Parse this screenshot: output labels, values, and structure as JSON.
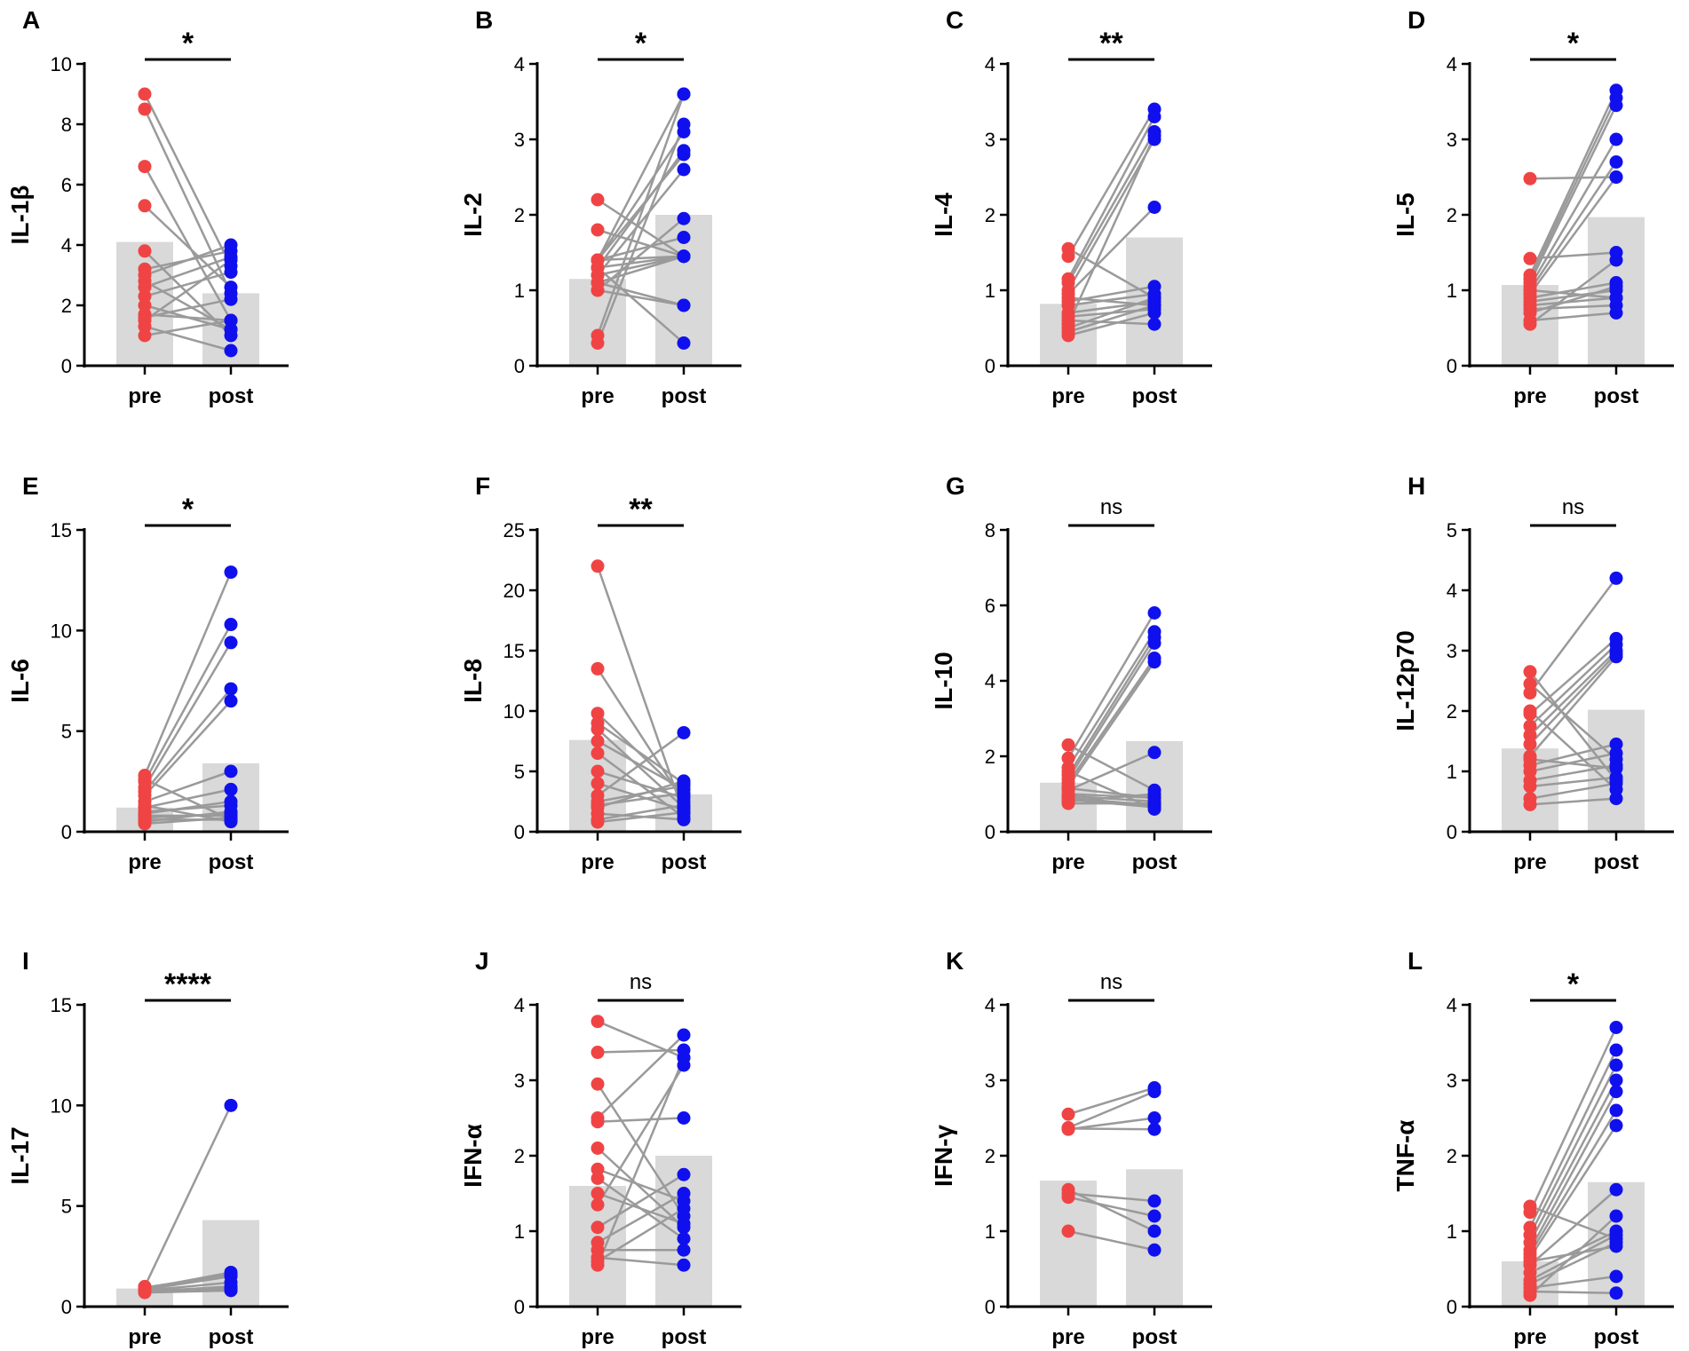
{
  "colors": {
    "pre": "#f04444",
    "post": "#1010ee",
    "bar": "#d9d9d9",
    "line": "#9a9a9a",
    "axis": "#000000"
  },
  "chart_data": [
    {
      "panel": "A",
      "type": "bar",
      "ylabel": "IL-1β",
      "categories": [
        "pre",
        "post"
      ],
      "ylim": [
        0,
        10
      ],
      "yticks": [
        0,
        2,
        4,
        6,
        8,
        10
      ],
      "bar_values": [
        4.1,
        2.4
      ],
      "significance": "*",
      "pairs": [
        [
          9.0,
          3.3
        ],
        [
          8.5,
          2.4
        ],
        [
          6.6,
          1.5
        ],
        [
          5.3,
          2.6
        ],
        [
          3.8,
          1.0
        ],
        [
          3.2,
          3.8
        ],
        [
          3.0,
          4.0
        ],
        [
          2.6,
          3.6
        ],
        [
          2.3,
          3.1
        ],
        [
          2.0,
          1.2
        ],
        [
          1.7,
          1.5
        ],
        [
          1.5,
          3.5
        ],
        [
          1.3,
          0.5
        ],
        [
          1.0,
          1.5
        ],
        [
          2.8,
          1.2
        ],
        [
          1.6,
          2.2
        ]
      ]
    },
    {
      "panel": "B",
      "type": "bar",
      "ylabel": "IL-2",
      "categories": [
        "pre",
        "post"
      ],
      "ylim": [
        0,
        4
      ],
      "yticks": [
        0,
        1,
        2,
        3,
        4
      ],
      "bar_values": [
        1.15,
        2.0
      ],
      "significance": "*",
      "pairs": [
        [
          2.2,
          1.45
        ],
        [
          1.8,
          1.45
        ],
        [
          1.4,
          3.6
        ],
        [
          1.4,
          1.7
        ],
        [
          1.3,
          0.3
        ],
        [
          1.2,
          1.45
        ],
        [
          1.1,
          0.8
        ],
        [
          1.0,
          1.95
        ],
        [
          0.4,
          3.6
        ],
        [
          0.3,
          3.2
        ],
        [
          1.4,
          3.1
        ],
        [
          1.4,
          2.8
        ],
        [
          1.3,
          2.85
        ],
        [
          1.2,
          2.6
        ],
        [
          1.4,
          1.45
        ],
        [
          1.1,
          1.45
        ],
        [
          1.0,
          0.8
        ],
        [
          1.3,
          1.45
        ]
      ]
    },
    {
      "panel": "C",
      "type": "bar",
      "ylabel": "IL-4",
      "categories": [
        "pre",
        "post"
      ],
      "ylim": [
        0,
        4
      ],
      "yticks": [
        0,
        1,
        2,
        3,
        4
      ],
      "bar_values": [
        0.82,
        1.7
      ],
      "significance": "**",
      "pairs": [
        [
          1.55,
          0.9
        ],
        [
          1.45,
          3.4
        ],
        [
          1.15,
          3.3
        ],
        [
          1.1,
          3.1
        ],
        [
          1.0,
          3.0
        ],
        [
          0.95,
          2.1
        ],
        [
          0.9,
          0.8
        ],
        [
          0.85,
          1.05
        ],
        [
          0.8,
          0.95
        ],
        [
          0.7,
          0.85
        ],
        [
          0.65,
          0.75
        ],
        [
          0.6,
          0.55
        ],
        [
          0.55,
          3.05
        ],
        [
          0.5,
          0.9
        ],
        [
          0.45,
          0.8
        ],
        [
          0.4,
          0.7
        ]
      ]
    },
    {
      "panel": "D",
      "type": "bar",
      "ylabel": "IL-5",
      "categories": [
        "pre",
        "post"
      ],
      "ylim": [
        0,
        4
      ],
      "yticks": [
        0,
        1,
        2,
        3,
        4
      ],
      "bar_values": [
        1.07,
        1.97
      ],
      "significance": "*",
      "pairs": [
        [
          2.48,
          2.5
        ],
        [
          1.42,
          1.5
        ],
        [
          1.2,
          3.65
        ],
        [
          1.15,
          3.55
        ],
        [
          1.1,
          3.45
        ],
        [
          1.05,
          3.0
        ],
        [
          1.0,
          2.7
        ],
        [
          0.95,
          2.5
        ],
        [
          0.9,
          1.1
        ],
        [
          0.85,
          1.0
        ],
        [
          0.8,
          0.9
        ],
        [
          0.75,
          0.8
        ],
        [
          0.7,
          1.05
        ],
        [
          0.6,
          0.7
        ],
        [
          0.55,
          1.4
        ],
        [
          1.0,
          0.9
        ]
      ]
    },
    {
      "panel": "E",
      "type": "bar",
      "ylabel": "IL-6",
      "categories": [
        "pre",
        "post"
      ],
      "ylim": [
        0,
        15
      ],
      "yticks": [
        0,
        5,
        10,
        15
      ],
      "bar_values": [
        1.2,
        3.4
      ],
      "significance": "*",
      "pairs": [
        [
          2.8,
          12.9
        ],
        [
          2.5,
          10.3
        ],
        [
          2.2,
          9.4
        ],
        [
          2.0,
          7.1
        ],
        [
          1.8,
          6.5
        ],
        [
          1.5,
          3.0
        ],
        [
          1.2,
          2.1
        ],
        [
          1.0,
          1.3
        ],
        [
          0.8,
          0.8
        ],
        [
          0.6,
          0.6
        ],
        [
          0.5,
          1.0
        ],
        [
          0.4,
          0.7
        ],
        [
          1.3,
          0.5
        ],
        [
          0.9,
          1.5
        ],
        [
          0.7,
          0.9
        ],
        [
          2.6,
          0.6
        ]
      ]
    },
    {
      "panel": "F",
      "type": "bar",
      "ylabel": "IL-8",
      "categories": [
        "pre",
        "post"
      ],
      "ylim": [
        0,
        25
      ],
      "yticks": [
        0,
        5,
        10,
        15,
        20,
        25
      ],
      "bar_values": [
        7.6,
        3.1
      ],
      "significance": "**",
      "pairs": [
        [
          22.0,
          1.5
        ],
        [
          13.5,
          2.5
        ],
        [
          9.8,
          3.0
        ],
        [
          9.0,
          4.0
        ],
        [
          8.5,
          2.0
        ],
        [
          7.5,
          3.5
        ],
        [
          6.5,
          1.2
        ],
        [
          5.0,
          2.8
        ],
        [
          4.0,
          1.8
        ],
        [
          3.0,
          8.2
        ],
        [
          2.5,
          3.8
        ],
        [
          2.0,
          4.2
        ],
        [
          1.5,
          1.0
        ],
        [
          1.0,
          2.2
        ],
        [
          2.2,
          3.2
        ],
        [
          0.8,
          1.6
        ]
      ]
    },
    {
      "panel": "G",
      "type": "bar",
      "ylabel": "IL-10",
      "categories": [
        "pre",
        "post"
      ],
      "ylim": [
        0,
        8
      ],
      "yticks": [
        0,
        2,
        4,
        6,
        8
      ],
      "bar_values": [
        1.3,
        2.4
      ],
      "significance": "ns",
      "pairs": [
        [
          2.3,
          1.1
        ],
        [
          1.95,
          5.8
        ],
        [
          1.7,
          5.3
        ],
        [
          1.5,
          5.15
        ],
        [
          1.4,
          5.0
        ],
        [
          1.3,
          4.6
        ],
        [
          1.2,
          4.5
        ],
        [
          1.1,
          2.1
        ],
        [
          1.0,
          0.9
        ],
        [
          0.95,
          0.8
        ],
        [
          0.9,
          0.7
        ],
        [
          0.85,
          0.65
        ],
        [
          0.8,
          1.0
        ],
        [
          0.75,
          0.75
        ],
        [
          1.6,
          0.6
        ],
        [
          1.15,
          0.9
        ]
      ]
    },
    {
      "panel": "H",
      "type": "bar",
      "ylabel": "IL-12p70",
      "categories": [
        "pre",
        "post"
      ],
      "ylim": [
        0,
        5
      ],
      "yticks": [
        0,
        1,
        2,
        3,
        4,
        5
      ],
      "bar_values": [
        1.38,
        2.02
      ],
      "significance": "ns",
      "pairs": [
        [
          2.65,
          0.85
        ],
        [
          2.45,
          1.2
        ],
        [
          2.3,
          4.2
        ],
        [
          1.95,
          3.2
        ],
        [
          1.75,
          3.1
        ],
        [
          1.6,
          3.0
        ],
        [
          1.45,
          2.95
        ],
        [
          1.25,
          2.9
        ],
        [
          1.1,
          1.45
        ],
        [
          1.0,
          1.3
        ],
        [
          0.85,
          1.1
        ],
        [
          0.75,
          0.9
        ],
        [
          0.55,
          0.8
        ],
        [
          0.45,
          0.55
        ],
        [
          2.0,
          0.7
        ],
        [
          1.2,
          1.05
        ]
      ]
    },
    {
      "panel": "I",
      "type": "bar",
      "ylabel": "IL-17",
      "categories": [
        "pre",
        "post"
      ],
      "ylim": [
        0,
        15
      ],
      "yticks": [
        0,
        5,
        10,
        15
      ],
      "bar_values": [
        0.9,
        4.3
      ],
      "significance": "****",
      "pairs": [
        [
          1.0,
          10.0
        ],
        [
          0.9,
          1.7
        ],
        [
          0.85,
          1.5
        ],
        [
          0.8,
          1.2
        ],
        [
          0.75,
          1.0
        ],
        [
          0.7,
          0.8
        ],
        [
          0.95,
          1.6
        ],
        [
          0.8,
          0.9
        ]
      ]
    },
    {
      "panel": "J",
      "type": "bar",
      "ylabel": "IFN-α",
      "categories": [
        "pre",
        "post"
      ],
      "ylim": [
        0,
        4
      ],
      "yticks": [
        0,
        1,
        2,
        3,
        4
      ],
      "bar_values": [
        1.6,
        2.0
      ],
      "significance": "ns",
      "pairs": [
        [
          3.78,
          3.3
        ],
        [
          3.37,
          3.4
        ],
        [
          2.95,
          1.2
        ],
        [
          2.5,
          3.6
        ],
        [
          2.45,
          2.5
        ],
        [
          2.1,
          1.05
        ],
        [
          1.82,
          1.4
        ],
        [
          1.35,
          3.2
        ],
        [
          1.05,
          1.75
        ],
        [
          0.85,
          1.5
        ],
        [
          0.75,
          0.75
        ],
        [
          0.65,
          0.55
        ],
        [
          0.55,
          3.3
        ],
        [
          1.7,
          0.9
        ],
        [
          1.5,
          1.1
        ],
        [
          0.6,
          1.3
        ]
      ]
    },
    {
      "panel": "K",
      "type": "bar",
      "ylabel": "IFN-γ",
      "categories": [
        "pre",
        "post"
      ],
      "ylim": [
        0,
        4
      ],
      "yticks": [
        0,
        1,
        2,
        3,
        4
      ],
      "bar_values": [
        1.67,
        1.82
      ],
      "significance": "ns",
      "pairs": [
        [
          2.55,
          2.9
        ],
        [
          2.37,
          2.85
        ],
        [
          2.35,
          2.5
        ],
        [
          1.55,
          1.0
        ],
        [
          1.45,
          1.2
        ],
        [
          1.0,
          0.75
        ],
        [
          2.36,
          2.35
        ],
        [
          1.5,
          1.4
        ]
      ]
    },
    {
      "panel": "L",
      "type": "bar",
      "ylabel": "TNF-α",
      "categories": [
        "pre",
        "post"
      ],
      "ylim": [
        0,
        4
      ],
      "yticks": [
        0,
        1,
        2,
        3,
        4
      ],
      "bar_values": [
        0.6,
        1.65
      ],
      "significance": "*",
      "pairs": [
        [
          1.33,
          0.9
        ],
        [
          1.25,
          3.7
        ],
        [
          1.05,
          3.4
        ],
        [
          0.95,
          3.2
        ],
        [
          0.85,
          3.0
        ],
        [
          0.75,
          2.85
        ],
        [
          0.7,
          2.6
        ],
        [
          0.65,
          2.4
        ],
        [
          0.55,
          1.55
        ],
        [
          0.45,
          1.0
        ],
        [
          0.35,
          0.95
        ],
        [
          0.3,
          0.85
        ],
        [
          0.25,
          0.4
        ],
        [
          0.2,
          0.18
        ],
        [
          0.15,
          1.2
        ],
        [
          0.6,
          0.8
        ]
      ]
    }
  ]
}
